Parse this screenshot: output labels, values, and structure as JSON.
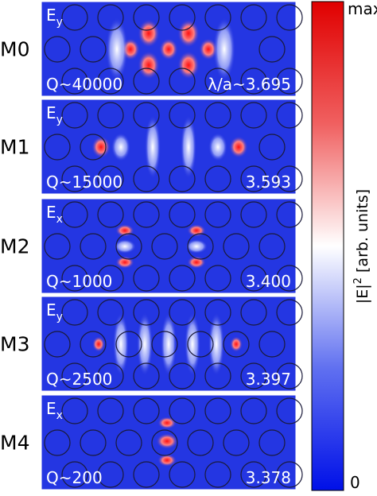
{
  "panels": [
    {
      "mode": "M0",
      "field": "E",
      "component": "y",
      "q": "Q~40000",
      "wavelength": "λ/a~3.695"
    },
    {
      "mode": "M1",
      "field": "E",
      "component": "y",
      "q": "Q~15000",
      "wavelength": "3.593"
    },
    {
      "mode": "M2",
      "field": "E",
      "component": "x",
      "q": "Q~1000",
      "wavelength": "3.400"
    },
    {
      "mode": "M3",
      "field": "E",
      "component": "y",
      "q": "Q~2500",
      "wavelength": "3.397"
    },
    {
      "mode": "M4",
      "field": "E",
      "component": "x",
      "q": "Q~200",
      "wavelength": "3.378"
    }
  ],
  "colorbar": {
    "max_label": "max",
    "min_label": "0",
    "label_parts": [
      "|E|",
      "2",
      " [arb. units]"
    ]
  }
}
